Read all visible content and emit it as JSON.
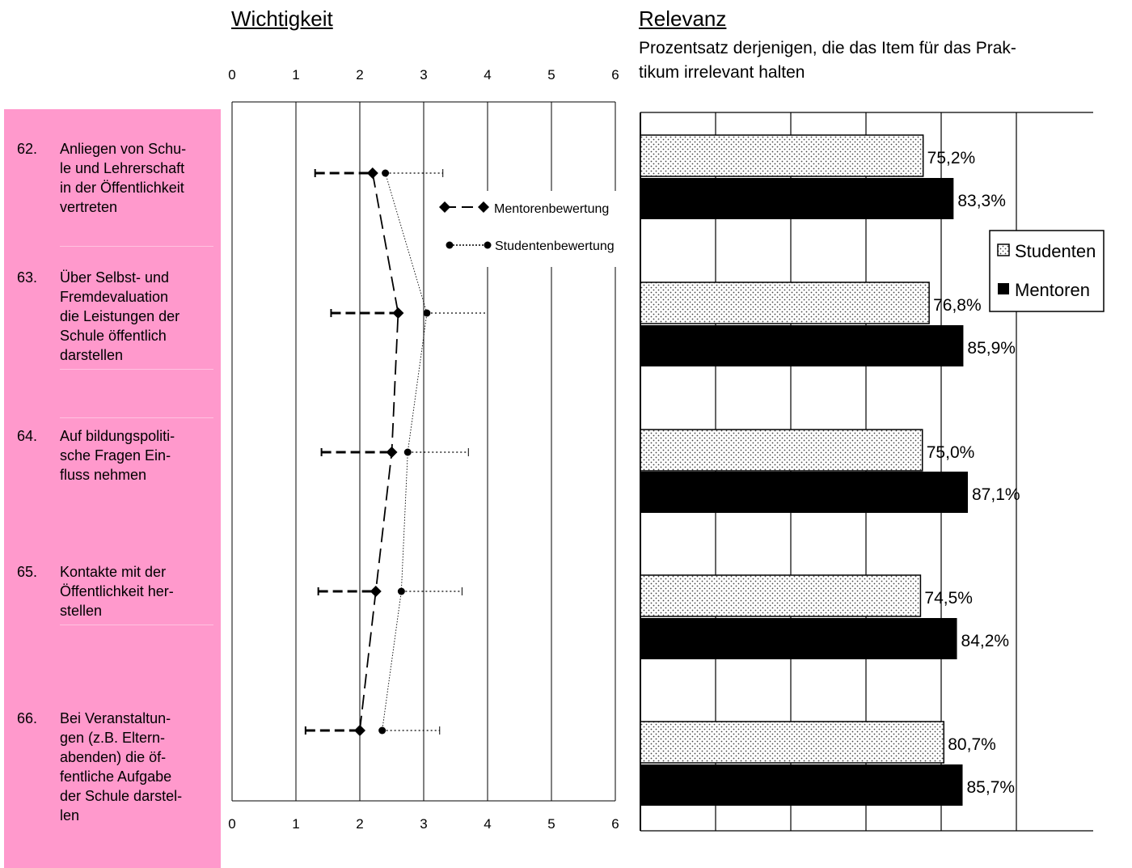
{
  "wichtigkeit": {
    "title": "Wichtigkeit",
    "ticks": [
      "0",
      "1",
      "2",
      "3",
      "4",
      "5",
      "6"
    ]
  },
  "relevanz": {
    "title": "Relevanz",
    "subtitle_line1": "Prozentsatz derjenigen, die das Item für das Prak-",
    "subtitle_line2": "tikum irrelevant halten"
  },
  "items": [
    {
      "num": "62.",
      "text": "Anliegen von Schu-\nle und Lehrerschaft\nin der Öffentlichkeit\nvertreten"
    },
    {
      "num": "63.",
      "text": "Über Selbst- und\nFremdevaluation\ndie Leistungen der\nSchule öffentlich\ndarstellen"
    },
    {
      "num": "64.",
      "text": "Auf bildungspoliti-\nsche Fragen Ein-\nfluss nehmen"
    },
    {
      "num": "65.",
      "text": "Kontakte mit der\nÖffentlichkeit her-\nstellen"
    },
    {
      "num": "66.",
      "text": "Bei Veranstaltun-\ngen (z.B. Eltern-\nabenden) die öf-\nfentliche Aufgabe\nder Schule darstel-\nlen"
    }
  ],
  "colors": {
    "panel": "#ff99cc",
    "mentoren": "#000000",
    "studenten_fill": "#ffffff"
  },
  "chart_data": [
    {
      "type": "line",
      "title": "Wichtigkeit",
      "xlim": [
        0,
        6
      ],
      "x_ticks": [
        0,
        1,
        2,
        3,
        4,
        5,
        6
      ],
      "categories": [
        "62.",
        "63.",
        "64.",
        "65.",
        "66."
      ],
      "legend_placement": "right",
      "series": [
        {
          "name": "Mentorenbewertung",
          "values": [
            2.2,
            2.6,
            2.5,
            2.25,
            2.0
          ],
          "err_low": [
            1.3,
            1.55,
            1.4,
            1.35,
            1.15
          ]
        },
        {
          "name": "Studentenbewertung",
          "values": [
            2.4,
            3.05,
            2.75,
            2.65,
            2.35
          ],
          "err_high": [
            3.3,
            4.0,
            3.7,
            3.6,
            3.25
          ]
        }
      ]
    },
    {
      "type": "bar",
      "title": "Relevanz",
      "orientation": "horizontal",
      "categories": [
        "62.",
        "63.",
        "64.",
        "65.",
        "66."
      ],
      "xlim": [
        0,
        100
      ],
      "legend_placement": "right",
      "series": [
        {
          "name": "Studenten",
          "values": [
            75.2,
            76.8,
            75.0,
            74.5,
            80.7
          ],
          "labels": [
            "75,2%",
            "76,8%",
            "75,0%",
            "74,5%",
            "80,7%"
          ]
        },
        {
          "name": "Mentoren",
          "values": [
            83.3,
            85.9,
            87.1,
            84.2,
            85.7
          ],
          "labels": [
            "83,3%",
            "85,9%",
            "87,1%",
            "84,2%",
            "85,7%"
          ]
        }
      ]
    }
  ]
}
